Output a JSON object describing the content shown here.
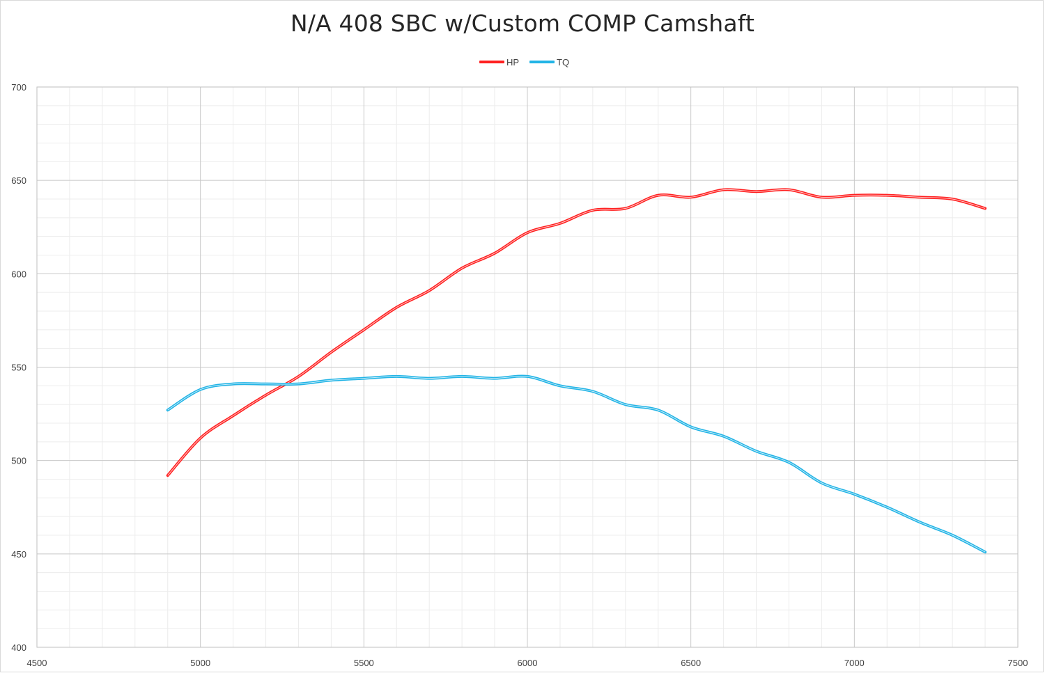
{
  "chart_data": {
    "type": "line",
    "title": "N/A 408 SBC w/Custom COMP Camshaft",
    "xlabel": "",
    "ylabel": "",
    "xlim": [
      4500,
      7500
    ],
    "ylim": [
      400,
      700
    ],
    "x_ticks": [
      "4500",
      "5000",
      "5500",
      "6000",
      "6500",
      "7000",
      "7500"
    ],
    "y_ticks": [
      "400",
      "450",
      "500",
      "550",
      "600",
      "650",
      "700"
    ],
    "grid": true,
    "legend_position": "top-center",
    "x": [
      4900,
      5000,
      5100,
      5200,
      5300,
      5400,
      5500,
      5600,
      5700,
      5800,
      5900,
      6000,
      6100,
      6200,
      6300,
      6400,
      6500,
      6600,
      6700,
      6800,
      6900,
      7000,
      7100,
      7200,
      7300,
      7400
    ],
    "series": [
      {
        "name": "HP",
        "color": "#ff2020",
        "values": [
          492,
          512,
          524,
          535,
          545,
          558,
          570,
          582,
          591,
          603,
          611,
          622,
          627,
          634,
          635,
          642,
          641,
          645,
          644,
          645,
          641,
          642,
          642,
          641,
          640,
          635
        ]
      },
      {
        "name": "TQ",
        "color": "#22b4e6",
        "values": [
          527,
          538,
          541,
          541,
          541,
          543,
          544,
          545,
          544,
          545,
          544,
          545,
          540,
          537,
          530,
          527,
          518,
          513,
          505,
          499,
          488,
          482,
          475,
          467,
          460,
          451
        ]
      }
    ]
  }
}
